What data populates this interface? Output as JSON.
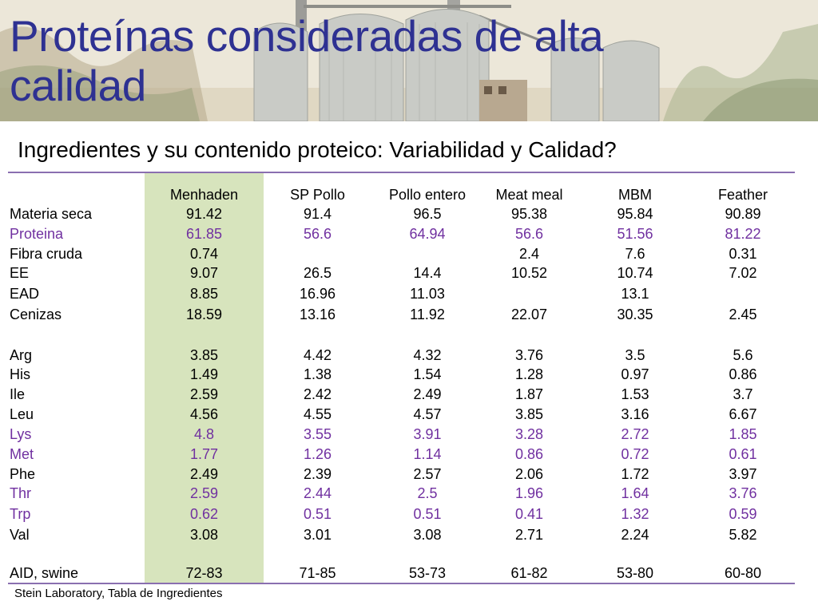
{
  "title": "Proteínas consideradas de alta calidad",
  "subtitle": "Ingredientes y su contenido proteico: Variabilidad y Calidad?",
  "columns": [
    "Menhaden",
    "SP Pollo",
    "Pollo entero",
    "Meat meal",
    "MBM",
    "Feather"
  ],
  "rows": [
    {
      "label": "Materia seca",
      "values": [
        "91.42",
        "91.4",
        "96.5",
        "95.38",
        "95.84",
        "90.89"
      ],
      "highlight": false
    },
    {
      "label": "Proteina",
      "values": [
        "61.85",
        "56.6",
        "64.94",
        "56.6",
        "51.56",
        "81.22"
      ],
      "highlight": true
    },
    {
      "label": "Fibra cruda",
      "values": [
        "0.74",
        "",
        "",
        "2.4",
        "7.6",
        "0.31"
      ],
      "highlight": false
    },
    {
      "label": "EE",
      "values": [
        "9.07",
        "26.5",
        "14.4",
        "10.52",
        "10.74",
        "7.02"
      ],
      "highlight": false
    },
    {
      "label": "EAD",
      "values": [
        "8.85",
        "16.96",
        "11.03",
        "",
        "13.1",
        ""
      ],
      "highlight": false
    },
    {
      "label": "Cenizas",
      "values": [
        "18.59",
        "13.16",
        "11.92",
        "22.07",
        "30.35",
        "2.45"
      ],
      "highlight": false
    },
    {
      "label": "Arg",
      "values": [
        "3.85",
        "4.42",
        "4.32",
        "3.76",
        "3.5",
        "5.6"
      ],
      "highlight": false
    },
    {
      "label": "His",
      "values": [
        "1.49",
        "1.38",
        "1.54",
        "1.28",
        "0.97",
        "0.86"
      ],
      "highlight": false
    },
    {
      "label": "Ile",
      "values": [
        "2.59",
        "2.42",
        "2.49",
        "1.87",
        "1.53",
        "3.7"
      ],
      "highlight": false
    },
    {
      "label": "Leu",
      "values": [
        "4.56",
        "4.55",
        "4.57",
        "3.85",
        "3.16",
        "6.67"
      ],
      "highlight": false
    },
    {
      "label": "Lys",
      "values": [
        "4.8",
        "3.55",
        "3.91",
        "3.28",
        "2.72",
        "1.85"
      ],
      "highlight": true
    },
    {
      "label": "Met",
      "values": [
        "1.77",
        "1.26",
        "1.14",
        "0.86",
        "0.72",
        "0.61"
      ],
      "highlight": true
    },
    {
      "label": "Phe",
      "values": [
        "2.49",
        "2.39",
        "2.57",
        "2.06",
        "1.72",
        "3.97"
      ],
      "highlight": false
    },
    {
      "label": "Thr",
      "values": [
        "2.59",
        "2.44",
        "2.5",
        "1.96",
        "1.64",
        "3.76"
      ],
      "highlight": true
    },
    {
      "label": "Trp",
      "values": [
        "0.62",
        "0.51",
        "0.51",
        "0.41",
        "1.32",
        "0.59"
      ],
      "highlight": true
    },
    {
      "label": "Val",
      "values": [
        "3.08",
        "3.01",
        "3.08",
        "2.71",
        "2.24",
        "5.82"
      ],
      "highlight": false
    },
    {
      "label": "AID, swine",
      "values": [
        "72-83",
        "71-85",
        "53-73",
        "61-82",
        "53-80",
        "60-80"
      ],
      "highlight": false
    }
  ],
  "footer": "Stein Laboratory, Tabla de Ingredientes",
  "colors": {
    "title": "#2e3192",
    "highlight": "#7030a0",
    "green_column": "#d7e4bd",
    "rule": "#8a6fb0"
  }
}
